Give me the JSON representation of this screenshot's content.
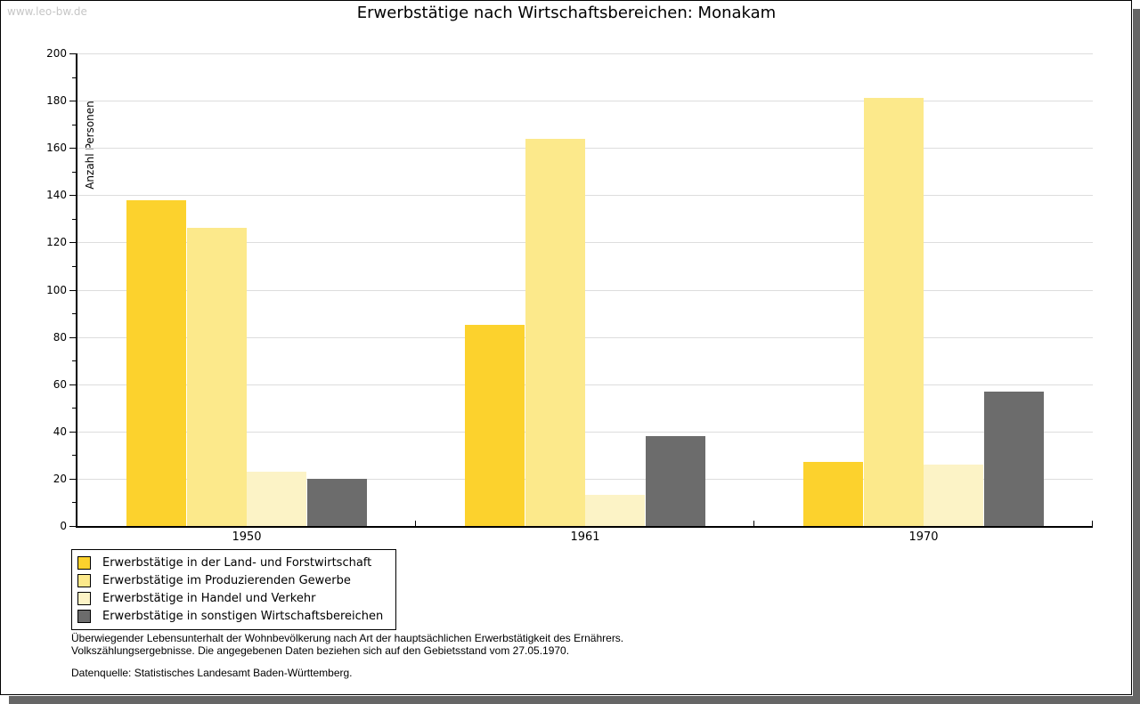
{
  "page": {
    "watermark": "www.leo-bw.de"
  },
  "chart_data": {
    "type": "bar",
    "title": "Erwerbstätige nach Wirtschaftsbereichen: Monakam",
    "xlabel": "",
    "ylabel": "Anzahl Personen",
    "categories": [
      "1950",
      "1961",
      "1970"
    ],
    "series": [
      {
        "name": "Erwerbstätige in der Land- und Forstwirtschaft",
        "color": "#FCD22D",
        "values": [
          138,
          85,
          27
        ]
      },
      {
        "name": "Erwerbstätige im Produzierenden Gewerbe",
        "color": "#FCE98B",
        "values": [
          126,
          164,
          181
        ]
      },
      {
        "name": "Erwerbstätige in Handel und Verkehr",
        "color": "#FCF3C6",
        "values": [
          23,
          13,
          26
        ]
      },
      {
        "name": "Erwerbstätige in sonstigen Wirtschaftsbereichen",
        "color": "#6C6C6C",
        "values": [
          20,
          38,
          57
        ]
      }
    ],
    "ylim": [
      0,
      200
    ],
    "ytick_step": 20,
    "yminor_step": 10,
    "grid": true,
    "gridline_color": "#DDDDDD",
    "legend_position": "bottom-left"
  },
  "footer": {
    "line1": "Überwiegender Lebensunterhalt der Wohnbevölkerung nach Art der hauptsächlichen Erwerbstätigkeit des Ernährers.",
    "line2": "Volkszählungsergebnisse. Die angegebenen Daten beziehen sich auf den Gebietsstand vom 27.05.1970.",
    "source": "Datenquelle: Statistisches Landesamt Baden-Württemberg."
  }
}
